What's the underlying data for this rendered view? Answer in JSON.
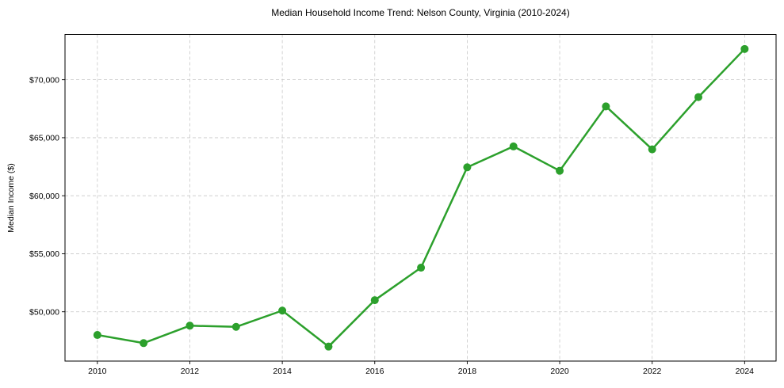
{
  "chart_data": {
    "type": "line",
    "title": "Median Household Income Trend: Nelson County, Virginia (2010-2024)",
    "xlabel": "",
    "ylabel": "Median Income ($)",
    "x": [
      2010,
      2011,
      2012,
      2013,
      2014,
      2015,
      2016,
      2017,
      2018,
      2019,
      2020,
      2021,
      2022,
      2023,
      2024
    ],
    "series": [
      {
        "name": "Median Household Income",
        "values": [
          48000,
          47300,
          48800,
          48700,
          50100,
          47000,
          51000,
          53800,
          62450,
          64250,
          62150,
          67700,
          64000,
          68500,
          72650
        ],
        "color": "#2ca02c",
        "marker": "circle",
        "marker_radius": 5,
        "line_width": 2.5
      }
    ],
    "x_ticks": {
      "values": [
        2010,
        2012,
        2014,
        2016,
        2018,
        2020,
        2022,
        2024
      ],
      "labels": [
        "2010",
        "2012",
        "2014",
        "2016",
        "2018",
        "2020",
        "2022",
        "2024"
      ]
    },
    "y_ticks": {
      "values": [
        50000,
        55000,
        60000,
        65000,
        70000
      ],
      "labels": [
        "$50,000",
        "$55,000",
        "$60,000",
        "$65,000",
        "$70,000"
      ]
    },
    "xlim": [
      2009.3,
      2024.68
    ],
    "ylim": [
      45750,
      73900
    ],
    "grid": {
      "show": true,
      "color": "#c8c8c8",
      "style": "dashed"
    },
    "legend": "none",
    "colors": {
      "background": "#ffffff",
      "spine": "#000000",
      "tick": "#000000",
      "text": "#000000"
    }
  }
}
